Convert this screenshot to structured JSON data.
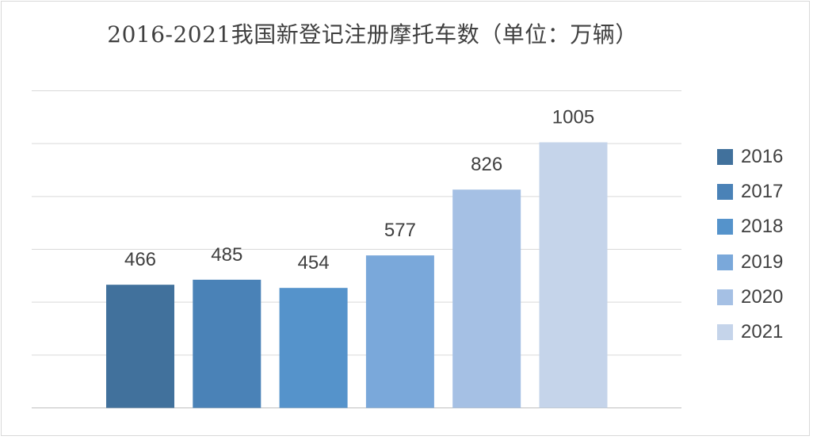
{
  "chart_data": {
    "type": "bar",
    "title": "2016-2021我国新登记注册摩托车数（单位：万辆）",
    "categories": [
      "2016",
      "2017",
      "2018",
      "2019",
      "2020",
      "2021"
    ],
    "values": [
      466,
      485,
      454,
      577,
      826,
      1005
    ],
    "colors": [
      "#41719c",
      "#4a82b7",
      "#5593cb",
      "#7aa8da",
      "#a5c0e4",
      "#c5d4ea"
    ],
    "ylim": [
      0,
      1200
    ],
    "grid": true,
    "legend_position": "right",
    "data_labels": true,
    "y_tick_labels_visible": false
  }
}
